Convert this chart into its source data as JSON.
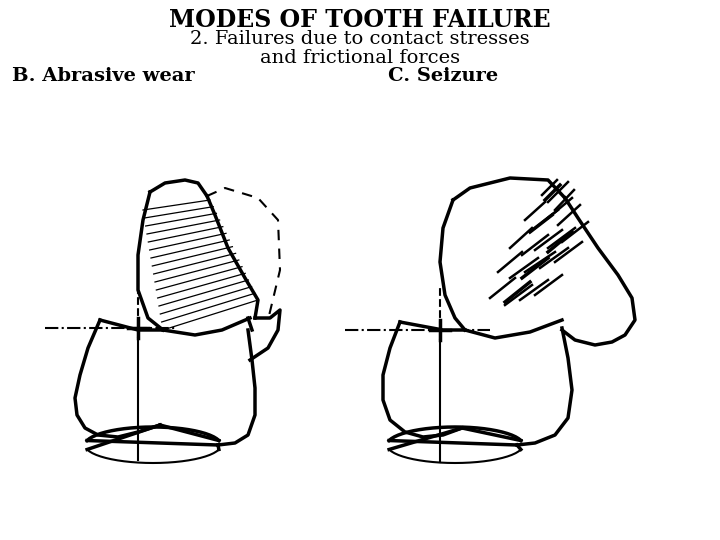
{
  "title": "MODES OF TOOTH FAILURE",
  "subtitle1": "2. Failures due to contact stresses",
  "subtitle2": "and frictional forces",
  "label_B": "B. Abrasive wear",
  "label_C": "C. Seizure",
  "bg_color": "#ffffff",
  "line_color": "#000000",
  "title_fontsize": 17,
  "subtitle_fontsize": 14,
  "label_fontsize": 14,
  "fig_width": 7.2,
  "fig_height": 5.4,
  "dpi": 100
}
